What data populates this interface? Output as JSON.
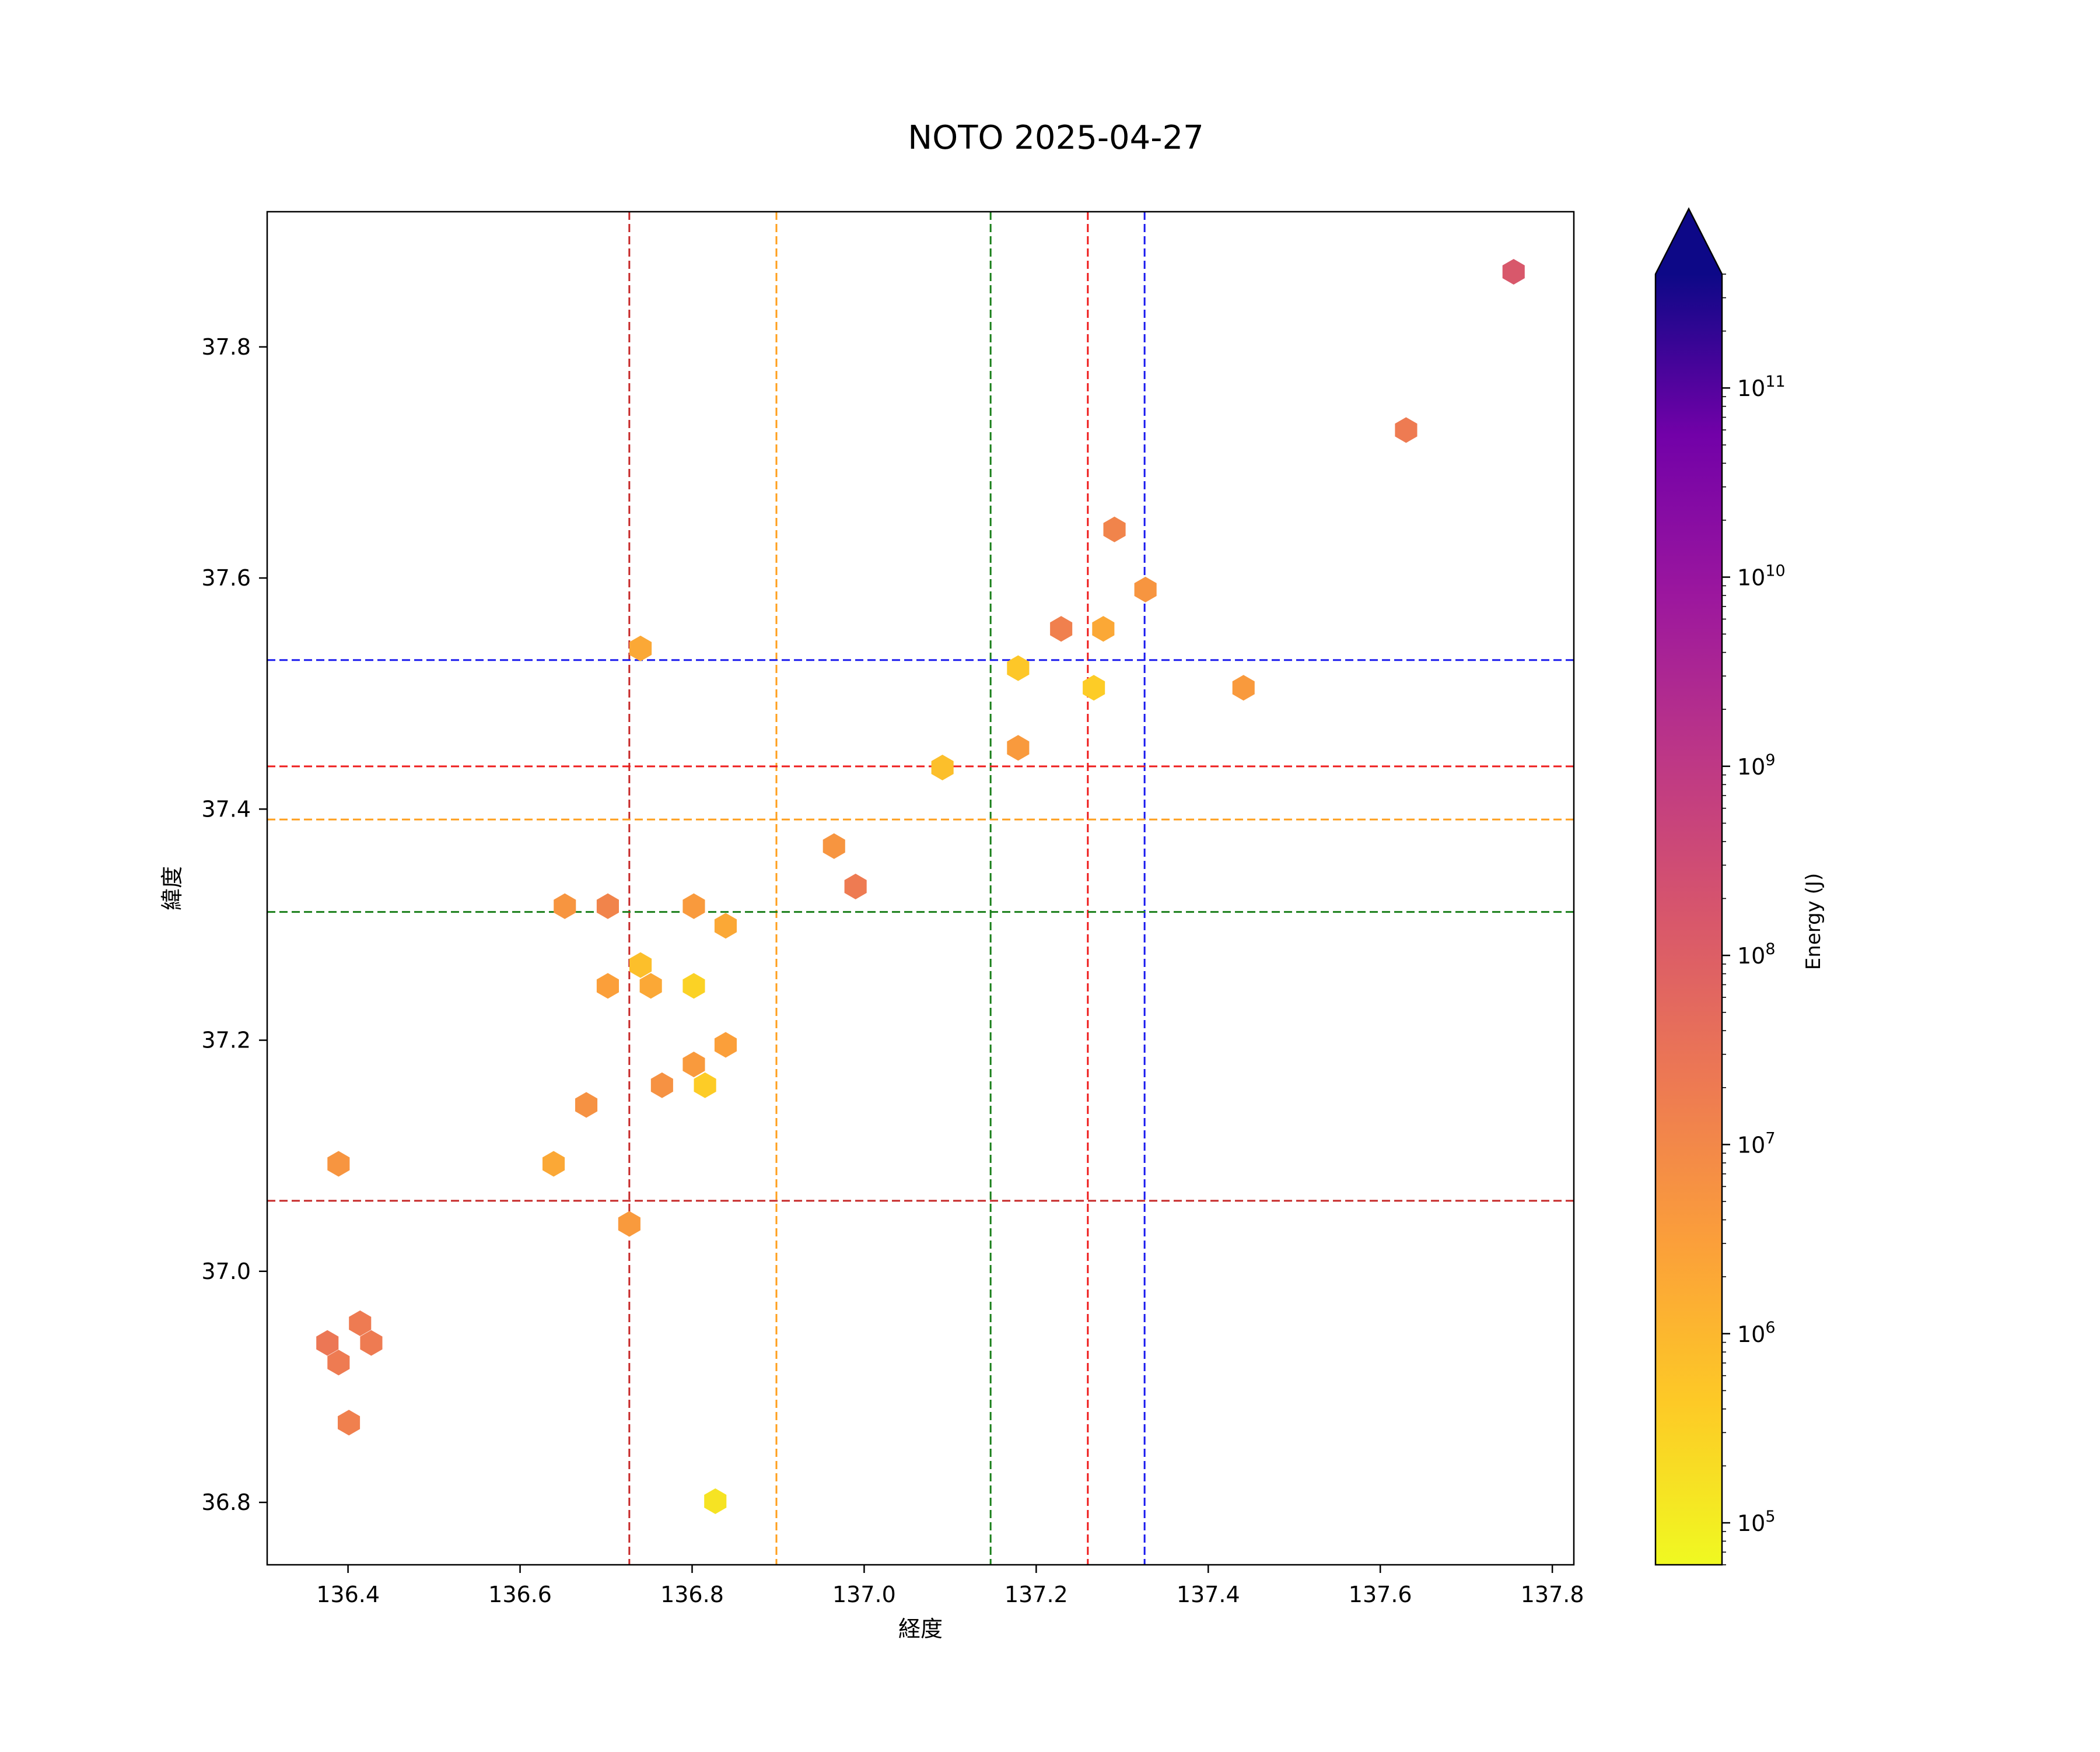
{
  "chart_data": {
    "type": "scatter",
    "marker": "hexbin",
    "title": "NOTO 2025-04-27",
    "xlabel": "経度",
    "ylabel": "緯度",
    "xlim": [
      136.306,
      137.825
    ],
    "ylim": [
      36.746,
      37.917
    ],
    "xticks": [
      {
        "value": 136.4,
        "label": "136.4"
      },
      {
        "value": 136.6,
        "label": "136.6"
      },
      {
        "value": 136.8,
        "label": "136.8"
      },
      {
        "value": 137.0,
        "label": "137.0"
      },
      {
        "value": 137.2,
        "label": "137.2"
      },
      {
        "value": 137.4,
        "label": "137.4"
      },
      {
        "value": 137.6,
        "label": "137.6"
      },
      {
        "value": 137.8,
        "label": "137.8"
      }
    ],
    "yticks": [
      {
        "value": 36.8,
        "label": "36.8"
      },
      {
        "value": 37.0,
        "label": "37.0"
      },
      {
        "value": 37.2,
        "label": "37.2"
      },
      {
        "value": 37.4,
        "label": "37.4"
      },
      {
        "value": 37.6,
        "label": "37.6"
      },
      {
        "value": 37.8,
        "label": "37.8"
      }
    ],
    "grid": false,
    "points": [
      {
        "x": 137.755,
        "y": 37.865,
        "energy": 150000000
      },
      {
        "x": 137.63,
        "y": 37.728,
        "energy": 20000000
      },
      {
        "x": 137.291,
        "y": 37.642,
        "energy": 12000000
      },
      {
        "x": 137.327,
        "y": 37.59,
        "energy": 5000000
      },
      {
        "x": 137.229,
        "y": 37.556,
        "energy": 15000000
      },
      {
        "x": 137.278,
        "y": 37.556,
        "energy": 2000000
      },
      {
        "x": 136.74,
        "y": 37.539,
        "energy": 2000000
      },
      {
        "x": 137.179,
        "y": 37.522,
        "energy": 500000
      },
      {
        "x": 137.267,
        "y": 37.505,
        "energy": 400000
      },
      {
        "x": 137.441,
        "y": 37.505,
        "energy": 4000000
      },
      {
        "x": 137.179,
        "y": 37.453,
        "energy": 4000000
      },
      {
        "x": 137.091,
        "y": 37.436,
        "energy": 700000
      },
      {
        "x": 136.965,
        "y": 37.368,
        "energy": 5000000
      },
      {
        "x": 136.99,
        "y": 37.333,
        "energy": 20000000
      },
      {
        "x": 136.652,
        "y": 37.316,
        "energy": 5000000
      },
      {
        "x": 136.702,
        "y": 37.316,
        "energy": 12000000
      },
      {
        "x": 136.802,
        "y": 37.316,
        "energy": 4000000
      },
      {
        "x": 136.839,
        "y": 37.299,
        "energy": 2000000
      },
      {
        "x": 136.74,
        "y": 37.265,
        "energy": 700000
      },
      {
        "x": 136.702,
        "y": 37.247,
        "energy": 3000000
      },
      {
        "x": 136.752,
        "y": 37.247,
        "energy": 2000000
      },
      {
        "x": 136.802,
        "y": 37.247,
        "energy": 300000
      },
      {
        "x": 136.839,
        "y": 37.196,
        "energy": 3000000
      },
      {
        "x": 136.802,
        "y": 37.179,
        "energy": 4000000
      },
      {
        "x": 136.765,
        "y": 37.161,
        "energy": 6000000
      },
      {
        "x": 136.815,
        "y": 37.161,
        "energy": 400000
      },
      {
        "x": 136.677,
        "y": 37.144,
        "energy": 6000000
      },
      {
        "x": 136.389,
        "y": 37.093,
        "energy": 5000000
      },
      {
        "x": 136.639,
        "y": 37.093,
        "energy": 2000000
      },
      {
        "x": 136.727,
        "y": 37.041,
        "energy": 4000000
      },
      {
        "x": 136.414,
        "y": 36.955,
        "energy": 20000000
      },
      {
        "x": 136.376,
        "y": 36.938,
        "energy": 25000000
      },
      {
        "x": 136.427,
        "y": 36.938,
        "energy": 20000000
      },
      {
        "x": 136.389,
        "y": 36.921,
        "energy": 20000000
      },
      {
        "x": 136.401,
        "y": 36.869,
        "energy": 15000000
      },
      {
        "x": 136.827,
        "y": 36.801,
        "energy": 150000
      }
    ],
    "reference_lines": [
      {
        "orientation": "vertical",
        "value": 136.727,
        "color": "#c62828"
      },
      {
        "orientation": "vertical",
        "value": 136.898,
        "color": "#ff9f1c"
      },
      {
        "orientation": "vertical",
        "value": 137.147,
        "color": "#1a7f1a"
      },
      {
        "orientation": "vertical",
        "value": 137.26,
        "color": "#ee1c1c"
      },
      {
        "orientation": "vertical",
        "value": 137.326,
        "color": "#1a1aee"
      },
      {
        "orientation": "horizontal",
        "value": 37.529,
        "color": "#1a1aee"
      },
      {
        "orientation": "horizontal",
        "value": 37.437,
        "color": "#ee1c1c"
      },
      {
        "orientation": "horizontal",
        "value": 37.391,
        "color": "#ff9f1c"
      },
      {
        "orientation": "horizontal",
        "value": 37.311,
        "color": "#1a7f1a"
      },
      {
        "orientation": "horizontal",
        "value": 37.061,
        "color": "#c62828"
      }
    ],
    "colorbar": {
      "label": "Energy (J)",
      "colormap": "plasma_r",
      "scale": "log",
      "range": [
        60000,
        400000000000
      ],
      "extend": "max",
      "extend_color": "#0d0887",
      "ticks": [
        {
          "value": 100000,
          "base": "10",
          "exp": "5"
        },
        {
          "value": 1000000,
          "base": "10",
          "exp": "6"
        },
        {
          "value": 10000000,
          "base": "10",
          "exp": "7"
        },
        {
          "value": 100000000,
          "base": "10",
          "exp": "8"
        },
        {
          "value": 1000000000,
          "base": "10",
          "exp": "9"
        },
        {
          "value": 10000000000,
          "base": "10",
          "exp": "10"
        },
        {
          "value": 100000000000,
          "base": "10",
          "exp": "11"
        }
      ]
    }
  }
}
